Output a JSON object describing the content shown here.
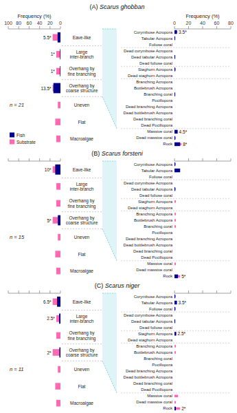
{
  "chart_data": [
    {
      "type": "bar",
      "orientation": "horizontal",
      "title": "(A) Scarus ghobban",
      "xlabel": "Frequency (%)",
      "categories": [
        "Eave-like",
        "Large\ninter-branch",
        "Overhang by\nfine branching",
        "Overhang by\ncoarse structure",
        "Uneven",
        "Flat",
        "Macroalgae"
      ],
      "xlim": [
        100,
        0
      ],
      "xticks": [
        100,
        80,
        60,
        40,
        20,
        0
      ],
      "legend": "lower left",
      "annotations": [
        {
          "text": "n = 21"
        }
      ],
      "series": [
        {
          "name": "Fish",
          "color": "#00008b",
          "values": [
            5.5,
            1,
            1,
            13.5,
            0,
            0,
            0
          ],
          "value_labels": [
            "5.5*",
            "1*",
            "1*",
            "13.5*",
            null,
            null,
            null
          ]
        },
        {
          "name": "Substrate",
          "color": "#ff69b4",
          "values": [
            15,
            8,
            8,
            15,
            5,
            10,
            8
          ]
        }
      ]
    },
    {
      "type": "bar",
      "orientation": "horizontal",
      "xlabel": "Frequency (%)",
      "categories": [
        "Corymbose Acropora",
        "Tabular Acropora",
        "Foliose coral",
        "Dead corymbose Acropora",
        "Dead tabular Acropora",
        "Dead foliose coral",
        "Staghorn Acropora",
        "Dead staghorn Acropora",
        "Branching Acropora",
        "Bottlebrush Acropora",
        "Branching coral",
        "Pocillopora",
        "Dead branching Acropora",
        "Dead bottlebrush Acropora",
        "Dead branching coral",
        "Dead Pocillopora",
        "Massive coral",
        "Dead massive coral",
        "Rock"
      ],
      "xlim": [
        0,
        80
      ],
      "xticks": [
        0,
        20,
        40,
        60,
        80
      ],
      "series": [
        {
          "name": "Fish",
          "color": "#00008b",
          "values": [
            3.5,
            1,
            0,
            0,
            1,
            0,
            1,
            0,
            0,
            0,
            1,
            0,
            0,
            0,
            0,
            0,
            4.5,
            1,
            8
          ],
          "value_labels": [
            "3.5*",
            null,
            null,
            null,
            null,
            null,
            null,
            null,
            null,
            null,
            null,
            null,
            null,
            null,
            null,
            null,
            "4.5*",
            null,
            "8*"
          ]
        },
        {
          "name": "Substrate",
          "color": "#ff69b4",
          "values": [
            4,
            1,
            0,
            0,
            1,
            0,
            2,
            0,
            0,
            0,
            1,
            0,
            0,
            0,
            0,
            0,
            3,
            2,
            10
          ]
        }
      ]
    },
    {
      "type": "bar",
      "orientation": "horizontal",
      "title": "(B) Scarus forsteni",
      "categories": [
        "Eave-like",
        "Large\ninter-branch",
        "Overhang by\nfine branching",
        "Overhang by\ncoarse structure",
        "Uneven",
        "Flat",
        "Macroalgae"
      ],
      "xlim": [
        100,
        0
      ],
      "xticks": [
        100,
        80,
        60,
        40,
        20,
        0
      ],
      "tick_labels": false,
      "annotations": [
        {
          "text": "n = 15"
        }
      ],
      "series": [
        {
          "name": "Fish",
          "color": "#00008b",
          "values": [
            10,
            0,
            0,
            5,
            0,
            0,
            0
          ],
          "value_labels": [
            "10*",
            null,
            null,
            "5*",
            null,
            null,
            null
          ]
        },
        {
          "name": "Substrate",
          "color": "#ff69b4",
          "values": [
            15,
            8,
            8,
            15,
            5,
            10,
            8
          ]
        }
      ]
    },
    {
      "type": "bar",
      "orientation": "horizontal",
      "categories": [
        "Corymbose Acropora",
        "Tabular Acropora",
        "Foliose coral",
        "Dead corymbose Acropora",
        "Dead tabular Acropora",
        "Dead foliose coral",
        "Staghorn Acropora",
        "Dead staghorn Acropora",
        "Branching Acropora",
        "Bottlebrush Acropora",
        "Branching coral",
        "Pocillopora",
        "Dead branching Acropora",
        "Dead bottlebrush Acropora",
        "Dead branching coral",
        "Dead Pocillopora",
        "Massive coral",
        "Dead massive coral",
        "Rock"
      ],
      "xlim": [
        0,
        80
      ],
      "xticks": [
        0,
        20,
        40,
        60,
        80
      ],
      "tick_labels": false,
      "series": [
        {
          "name": "Fish",
          "color": "#00008b",
          "values": [
            1,
            8,
            0,
            0,
            1,
            0,
            0,
            0,
            0,
            0,
            0,
            0,
            0,
            0,
            0,
            0,
            0,
            0,
            5
          ],
          "value_labels": [
            null,
            null,
            null,
            null,
            null,
            null,
            null,
            null,
            null,
            null,
            null,
            null,
            null,
            null,
            null,
            null,
            null,
            null,
            "5*"
          ]
        },
        {
          "name": "Substrate",
          "color": "#ff69b4",
          "values": [
            2,
            5,
            0,
            0,
            2,
            0,
            2,
            0,
            2,
            2,
            2,
            0,
            0,
            0,
            0,
            0,
            2,
            0,
            8
          ]
        }
      ]
    },
    {
      "type": "bar",
      "orientation": "horizontal",
      "title": "(C) Scarus niger",
      "categories": [
        "Eave-like",
        "Large\ninter-branch",
        "Overhang by\nfine branching",
        "Overhang by\ncoarse structure",
        "Uneven",
        "Flat",
        "Macroalgae"
      ],
      "xlim": [
        100,
        0
      ],
      "xticks": [
        100,
        80,
        60,
        40,
        20,
        0
      ],
      "tick_labels": false,
      "annotations": [
        {
          "text": "n = 11"
        }
      ],
      "series": [
        {
          "name": "Fish",
          "color": "#00008b",
          "values": [
            6.5,
            2.5,
            0,
            2,
            0,
            0,
            0
          ],
          "value_labels": [
            "6.5*",
            "2.5*",
            null,
            "2*",
            null,
            null,
            null
          ]
        },
        {
          "name": "Substrate",
          "color": "#ff69b4",
          "values": [
            15,
            8,
            8,
            15,
            5,
            10,
            8
          ]
        }
      ]
    },
    {
      "type": "bar",
      "orientation": "horizontal",
      "categories": [
        "Corymbose Acropora",
        "Tabular Acropora",
        "Foliose coral",
        "Dead corymbose Acropora",
        "Dead tabular Acropora",
        "Dead foliose coral",
        "Staghorn Acropora",
        "Dead staghorn Acropora",
        "Branching Acropora",
        "Bottlebrush Acropora",
        "Branching coral",
        "Pocillopora",
        "Dead branching Acropora",
        "Dead bottlebrush Acropora",
        "Dead branching coral",
        "Dead Pocillopora",
        "Massive coral",
        "Dead massive coral",
        "Rock"
      ],
      "xlim": [
        0,
        80
      ],
      "xticks": [
        0,
        20,
        40,
        60,
        80
      ],
      "tick_labels": false,
      "series": [
        {
          "name": "Fish",
          "color": "#00008b",
          "values": [
            1,
            3.5,
            1,
            0,
            1,
            0,
            2.5,
            0,
            0,
            0,
            0,
            0,
            0,
            0,
            0,
            0,
            0,
            0,
            2
          ],
          "value_labels": [
            null,
            "3.5*",
            null,
            null,
            null,
            null,
            "2.5*",
            null,
            null,
            null,
            null,
            null,
            null,
            null,
            null,
            null,
            null,
            null,
            "2*"
          ]
        },
        {
          "name": "Substrate",
          "color": "#ff69b4",
          "values": [
            2,
            3,
            2,
            0,
            1,
            0,
            2,
            0,
            2,
            2,
            0,
            0,
            0,
            0,
            0,
            0,
            5,
            2,
            8
          ]
        }
      ]
    }
  ]
}
